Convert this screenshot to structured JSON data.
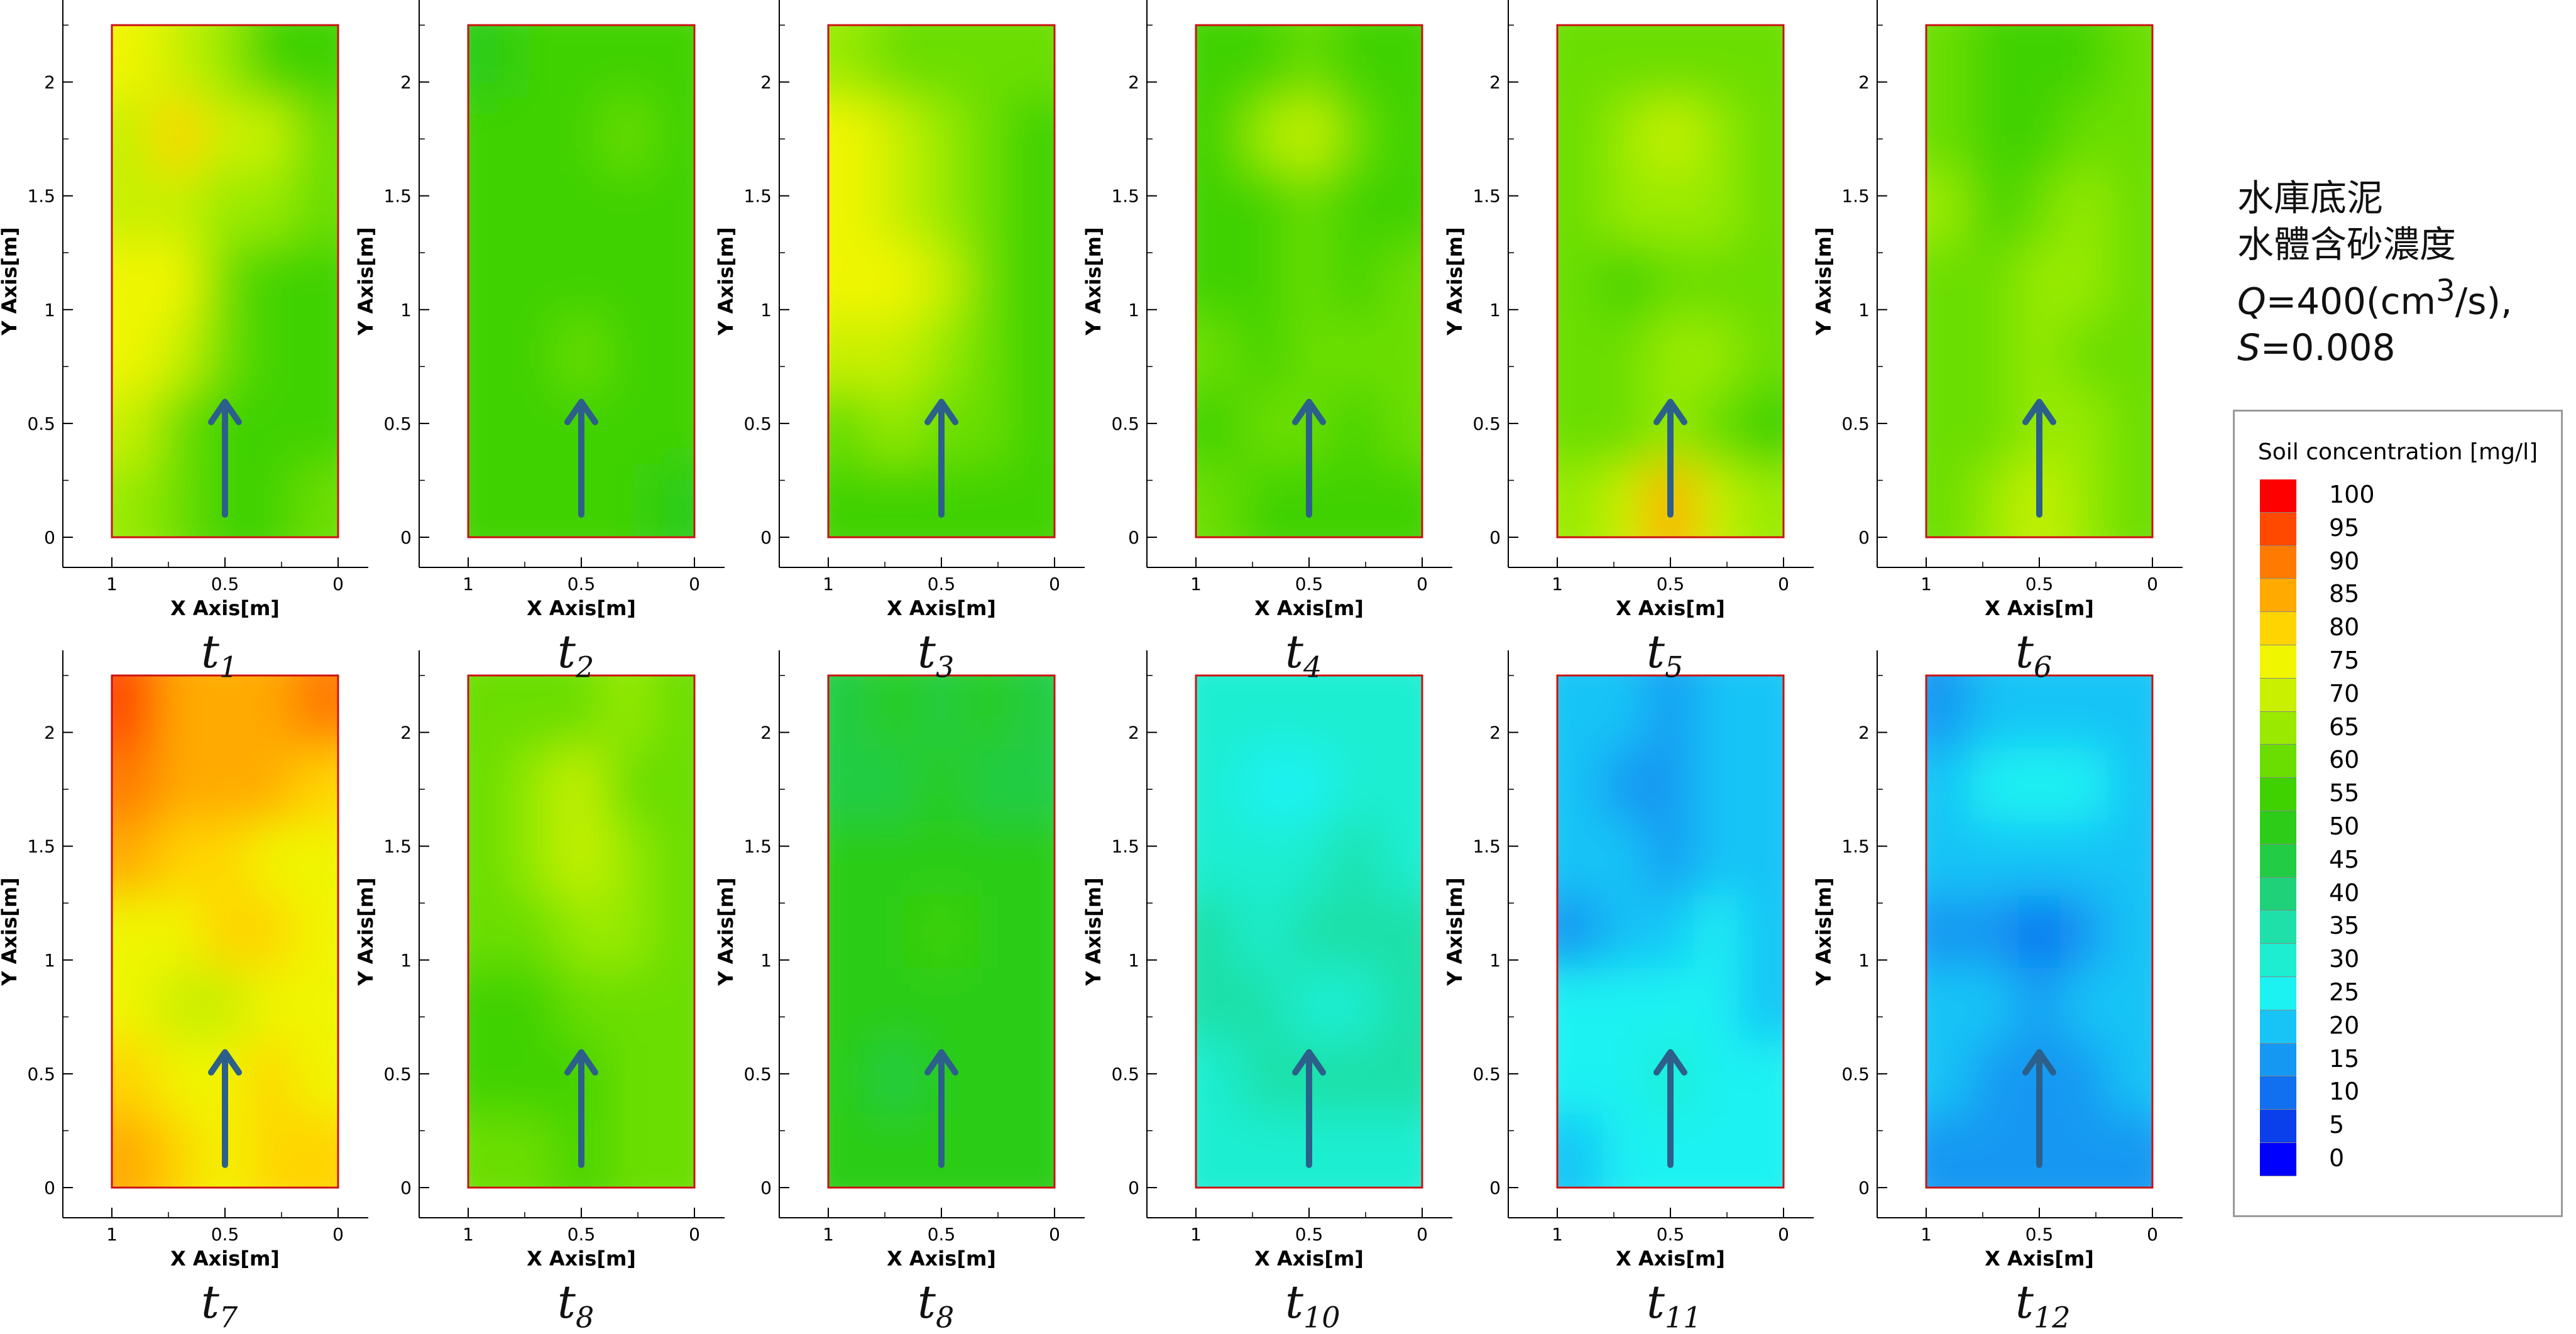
{
  "annotation": {
    "line1": "水庫底泥",
    "line2": "水體含砂濃度",
    "q_symbol": "Q",
    "q_value": "=400(cm",
    "q_exp": "3",
    "q_unit": "/s),",
    "s_symbol": "S",
    "s_value": "=0.008"
  },
  "legend": {
    "title": "Soil concentration [mg/l]",
    "levels": [
      "100",
      "95",
      "90",
      "85",
      "80",
      "75",
      "70",
      "65",
      "60",
      "55",
      "50",
      "45",
      "40",
      "35",
      "30",
      "25",
      "20",
      "15",
      "10",
      "5",
      "0"
    ],
    "colors": [
      "#ff0000",
      "#ff4800",
      "#ff7a00",
      "#ffaa00",
      "#ffd400",
      "#f0f500",
      "#c8f000",
      "#99ea00",
      "#6ade00",
      "#40d200",
      "#2ccc18",
      "#22cc44",
      "#1fd27a",
      "#1ee0a8",
      "#1deed2",
      "#1cf2f2",
      "#18c4f6",
      "#1498f2",
      "#1070f0",
      "#0a40ec",
      "#0000ff"
    ]
  },
  "chart_data": [
    {
      "type": "heatmap",
      "panel": "t1",
      "label_base": "t",
      "label_sub": "1",
      "xlabel": "X Axis[m]",
      "ylabel": "Y Axis[m]",
      "xlim": [
        1,
        0
      ],
      "ylim": [
        0,
        2.25
      ],
      "xticks": [
        "1",
        "0.5",
        "0"
      ],
      "yticks": [
        "0",
        "0.5",
        "1",
        "1.5",
        "2"
      ],
      "flow_arrow": {
        "x": 0.5,
        "y0": 0.1,
        "y1": 0.6
      },
      "grid": [
        [
          75,
          70,
          65,
          55,
          55
        ],
        [
          70,
          80,
          70,
          70,
          60
        ],
        [
          70,
          70,
          65,
          65,
          60
        ],
        [
          75,
          75,
          60,
          55,
          55
        ],
        [
          75,
          70,
          60,
          55,
          55
        ],
        [
          70,
          60,
          55,
          55,
          55
        ],
        [
          65,
          60,
          55,
          55,
          60
        ]
      ]
    },
    {
      "type": "heatmap",
      "panel": "t2",
      "label_base": "t",
      "label_sub": "2",
      "xlabel": "X Axis[m]",
      "ylabel": "Y Axis[m]",
      "xlim": [
        1,
        0
      ],
      "ylim": [
        0,
        2.25
      ],
      "xticks": [
        "1",
        "0.5",
        "0"
      ],
      "yticks": [
        "0",
        "0.5",
        "1",
        "1.5",
        "2"
      ],
      "flow_arrow": {
        "x": 0.5,
        "y0": 0.1,
        "y1": 0.6
      },
      "grid": [
        [
          50,
          55,
          55,
          55,
          55
        ],
        [
          55,
          55,
          55,
          60,
          55
        ],
        [
          55,
          55,
          55,
          55,
          55
        ],
        [
          55,
          55,
          55,
          55,
          55
        ],
        [
          55,
          55,
          60,
          55,
          55
        ],
        [
          55,
          55,
          55,
          55,
          55
        ],
        [
          55,
          55,
          55,
          55,
          50
        ]
      ]
    },
    {
      "type": "heatmap",
      "panel": "t3",
      "label_base": "t",
      "label_sub": "3",
      "xlabel": "X Axis[m]",
      "ylabel": "Y Axis[m]",
      "xlim": [
        1,
        0
      ],
      "ylim": [
        0,
        2.25
      ],
      "xticks": [
        "1",
        "0.5",
        "0"
      ],
      "yticks": [
        "0",
        "0.5",
        "1",
        "1.5",
        "2"
      ],
      "flow_arrow": {
        "x": 0.5,
        "y0": 0.1,
        "y1": 0.6
      },
      "grid": [
        [
          65,
          60,
          60,
          60,
          60
        ],
        [
          75,
          70,
          65,
          60,
          55
        ],
        [
          75,
          70,
          65,
          60,
          55
        ],
        [
          75,
          75,
          70,
          60,
          55
        ],
        [
          70,
          70,
          65,
          60,
          55
        ],
        [
          60,
          65,
          60,
          60,
          55
        ],
        [
          55,
          55,
          55,
          55,
          55
        ]
      ]
    },
    {
      "type": "heatmap",
      "panel": "t4",
      "label_base": "t",
      "label_sub": "4",
      "xlabel": "X Axis[m]",
      "ylabel": "Y Axis[m]",
      "xlim": [
        1,
        0
      ],
      "ylim": [
        0,
        2.25
      ],
      "xticks": [
        "1",
        "0.5",
        "0"
      ],
      "yticks": [
        "0",
        "0.5",
        "1",
        "1.5",
        "2"
      ],
      "flow_arrow": {
        "x": 0.5,
        "y0": 0.1,
        "y1": 0.6
      },
      "grid": [
        [
          55,
          55,
          60,
          55,
          55
        ],
        [
          55,
          65,
          70,
          60,
          55
        ],
        [
          55,
          55,
          60,
          55,
          55
        ],
        [
          55,
          55,
          60,
          55,
          60
        ],
        [
          60,
          55,
          60,
          60,
          60
        ],
        [
          55,
          60,
          60,
          55,
          60
        ],
        [
          60,
          55,
          55,
          55,
          55
        ]
      ]
    },
    {
      "type": "heatmap",
      "panel": "t5",
      "label_base": "t",
      "label_sub": "5",
      "xlabel": "X Axis[m]",
      "ylabel": "Y Axis[m]",
      "xlim": [
        1,
        0
      ],
      "ylim": [
        0,
        2.25
      ],
      "xticks": [
        "1",
        "0.5",
        "0"
      ],
      "yticks": [
        "0",
        "0.5",
        "1",
        "1.5",
        "2"
      ],
      "flow_arrow": {
        "x": 0.5,
        "y0": 0.1,
        "y1": 0.6
      },
      "grid": [
        [
          60,
          60,
          60,
          60,
          60
        ],
        [
          60,
          65,
          70,
          65,
          60
        ],
        [
          60,
          65,
          65,
          65,
          60
        ],
        [
          60,
          55,
          60,
          60,
          60
        ],
        [
          60,
          60,
          65,
          65,
          60
        ],
        [
          60,
          60,
          65,
          60,
          55
        ],
        [
          65,
          70,
          85,
          70,
          65
        ]
      ]
    },
    {
      "type": "heatmap",
      "panel": "t6",
      "label_base": "t",
      "label_sub": "6",
      "xlabel": "X Axis[m]",
      "ylabel": "Y Axis[m]",
      "xlim": [
        1,
        0
      ],
      "ylim": [
        0,
        2.25
      ],
      "xticks": [
        "1",
        "0.5",
        "0"
      ],
      "yticks": [
        "0",
        "0.5",
        "1",
        "1.5",
        "2"
      ],
      "flow_arrow": {
        "x": 0.5,
        "y0": 0.1,
        "y1": 0.6
      },
      "grid": [
        [
          60,
          55,
          55,
          55,
          60
        ],
        [
          60,
          55,
          55,
          60,
          60
        ],
        [
          65,
          55,
          60,
          65,
          60
        ],
        [
          60,
          60,
          65,
          65,
          60
        ],
        [
          60,
          60,
          65,
          60,
          60
        ],
        [
          60,
          60,
          65,
          65,
          60
        ],
        [
          60,
          65,
          70,
          65,
          60
        ]
      ]
    },
    {
      "type": "heatmap",
      "panel": "t7",
      "label_base": "t",
      "label_sub": "7",
      "xlabel": "X Axis[m]",
      "ylabel": "Y Axis[m]",
      "xlim": [
        1,
        0
      ],
      "ylim": [
        0,
        2.25
      ],
      "xticks": [
        "1",
        "0.5",
        "0"
      ],
      "yticks": [
        "0",
        "0.5",
        "1",
        "1.5",
        "2"
      ],
      "flow_arrow": {
        "x": 0.5,
        "y0": 0.1,
        "y1": 0.6
      },
      "grid": [
        [
          95,
          85,
          85,
          85,
          90
        ],
        [
          90,
          85,
          85,
          85,
          80
        ],
        [
          85,
          80,
          80,
          75,
          75
        ],
        [
          75,
          75,
          80,
          80,
          75
        ],
        [
          75,
          70,
          70,
          75,
          75
        ],
        [
          80,
          75,
          75,
          80,
          75
        ],
        [
          85,
          80,
          75,
          80,
          80
        ]
      ]
    },
    {
      "type": "heatmap",
      "panel": "t8",
      "label_base": "t",
      "label_sub": "8",
      "xlabel": "X Axis[m]",
      "ylabel": "Y Axis[m]",
      "xlim": [
        1,
        0
      ],
      "ylim": [
        0,
        2.25
      ],
      "xticks": [
        "1",
        "0.5",
        "0"
      ],
      "yticks": [
        "0",
        "0.5",
        "1",
        "1.5",
        "2"
      ],
      "flow_arrow": {
        "x": 0.5,
        "y0": 0.1,
        "y1": 0.6
      },
      "grid": [
        [
          60,
          60,
          60,
          65,
          60
        ],
        [
          60,
          65,
          70,
          60,
          60
        ],
        [
          60,
          65,
          70,
          65,
          60
        ],
        [
          60,
          60,
          65,
          65,
          60
        ],
        [
          55,
          55,
          60,
          60,
          60
        ],
        [
          55,
          55,
          55,
          60,
          60
        ],
        [
          60,
          60,
          55,
          60,
          60
        ]
      ]
    },
    {
      "type": "heatmap",
      "panel": "t8b",
      "label_base": "t",
      "label_sub": "8",
      "xlabel": "X Axis[m]",
      "ylabel": "Y Axis[m]",
      "xlim": [
        1,
        0
      ],
      "ylim": [
        0,
        2.25
      ],
      "xticks": [
        "1",
        "0.5",
        "0"
      ],
      "yticks": [
        "0",
        "0.5",
        "1",
        "1.5",
        "2"
      ],
      "flow_arrow": {
        "x": 0.5,
        "y0": 0.1,
        "y1": 0.6
      },
      "grid": [
        [
          45,
          50,
          45,
          50,
          45
        ],
        [
          45,
          45,
          50,
          45,
          45
        ],
        [
          50,
          50,
          50,
          50,
          50
        ],
        [
          50,
          50,
          55,
          50,
          50
        ],
        [
          50,
          50,
          50,
          50,
          50
        ],
        [
          50,
          45,
          50,
          50,
          50
        ],
        [
          50,
          50,
          50,
          50,
          50
        ]
      ]
    },
    {
      "type": "heatmap",
      "panel": "t10",
      "label_base": "t",
      "label_sub": "10",
      "xlabel": "X Axis[m]",
      "ylabel": "Y Axis[m]",
      "xlim": [
        1,
        0
      ],
      "ylim": [
        0,
        2.25
      ],
      "xticks": [
        "1",
        "0.5",
        "0"
      ],
      "yticks": [
        "0",
        "0.5",
        "1",
        "1.5",
        "2"
      ],
      "flow_arrow": {
        "x": 0.5,
        "y0": 0.1,
        "y1": 0.6
      },
      "grid": [
        [
          30,
          30,
          30,
          30,
          30
        ],
        [
          30,
          25,
          25,
          30,
          30
        ],
        [
          30,
          30,
          30,
          35,
          30
        ],
        [
          35,
          30,
          35,
          35,
          35
        ],
        [
          35,
          35,
          30,
          30,
          35
        ],
        [
          30,
          35,
          35,
          35,
          35
        ],
        [
          30,
          30,
          30,
          30,
          30
        ]
      ]
    },
    {
      "type": "heatmap",
      "panel": "t11",
      "label_base": "t",
      "label_sub": "11",
      "xlabel": "X Axis[m]",
      "ylabel": "Y Axis[m]",
      "xlim": [
        1,
        0
      ],
      "ylim": [
        0,
        2.25
      ],
      "xticks": [
        "1",
        "0.5",
        "0"
      ],
      "yticks": [
        "0",
        "0.5",
        "1",
        "1.5",
        "2"
      ],
      "flow_arrow": {
        "x": 0.5,
        "y0": 0.1,
        "y1": 0.6
      },
      "grid": [
        [
          20,
          20,
          15,
          20,
          20
        ],
        [
          20,
          15,
          15,
          20,
          20
        ],
        [
          20,
          20,
          15,
          20,
          20
        ],
        [
          15,
          20,
          20,
          25,
          20
        ],
        [
          25,
          25,
          25,
          25,
          20
        ],
        [
          25,
          25,
          30,
          25,
          25
        ],
        [
          20,
          25,
          25,
          25,
          25
        ]
      ]
    },
    {
      "type": "heatmap",
      "panel": "t12",
      "label_base": "t",
      "label_sub": "12",
      "xlabel": "X Axis[m]",
      "ylabel": "Y Axis[m]",
      "xlim": [
        1,
        0
      ],
      "ylim": [
        0,
        2.25
      ],
      "xticks": [
        "1",
        "0.5",
        "0"
      ],
      "yticks": [
        "0",
        "0.5",
        "1",
        "1.5",
        "2"
      ],
      "flow_arrow": {
        "x": 0.5,
        "y0": 0.1,
        "y1": 0.6
      },
      "grid": [
        [
          15,
          20,
          20,
          20,
          20
        ],
        [
          20,
          25,
          25,
          25,
          20
        ],
        [
          20,
          20,
          20,
          20,
          20
        ],
        [
          15,
          15,
          10,
          15,
          20
        ],
        [
          20,
          20,
          15,
          20,
          20
        ],
        [
          20,
          15,
          15,
          15,
          20
        ],
        [
          15,
          15,
          15,
          15,
          15
        ]
      ]
    }
  ]
}
